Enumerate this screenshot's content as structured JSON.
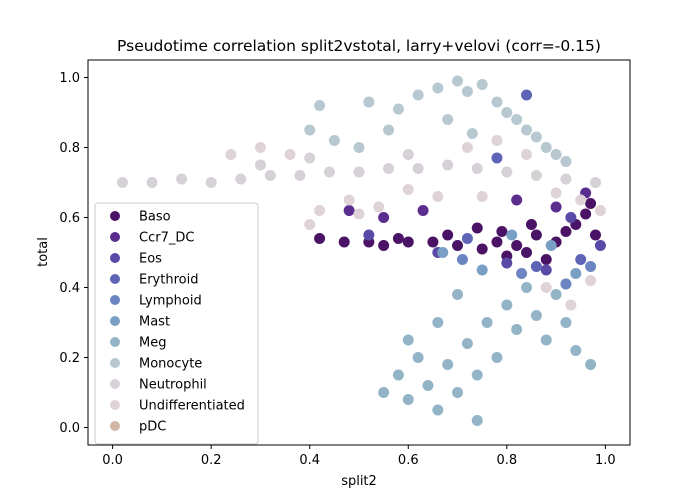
{
  "chart_data": {
    "type": "scatter",
    "title": "Pseudotime correlation split2vstotal, larry+velovi (corr=-0.15)",
    "xlabel": "split2",
    "ylabel": "total",
    "xlim": [
      -0.05,
      1.05
    ],
    "ylim": [
      -0.05,
      1.05
    ],
    "xticks": [
      "0.0",
      "0.2",
      "0.4",
      "0.6",
      "0.8",
      "1.0"
    ],
    "yticks": [
      "0.0",
      "0.2",
      "0.4",
      "0.6",
      "0.8",
      "1.0"
    ],
    "grid": false,
    "legend_position": "lower-left",
    "series": [
      {
        "name": "Baso",
        "color": "#4a1366",
        "points": [
          [
            0.42,
            0.54
          ],
          [
            0.47,
            0.53
          ],
          [
            0.52,
            0.53
          ],
          [
            0.55,
            0.52
          ],
          [
            0.6,
            0.53
          ],
          [
            0.65,
            0.53
          ],
          [
            0.7,
            0.52
          ],
          [
            0.75,
            0.51
          ],
          [
            0.78,
            0.53
          ],
          [
            0.8,
            0.49
          ],
          [
            0.82,
            0.52
          ],
          [
            0.84,
            0.5
          ],
          [
            0.86,
            0.55
          ],
          [
            0.88,
            0.48
          ],
          [
            0.9,
            0.53
          ],
          [
            0.92,
            0.56
          ],
          [
            0.94,
            0.58
          ],
          [
            0.96,
            0.61
          ],
          [
            0.97,
            0.64
          ],
          [
            0.74,
            0.57
          ],
          [
            0.58,
            0.54
          ],
          [
            0.68,
            0.55
          ],
          [
            0.98,
            0.55
          ],
          [
            0.85,
            0.58
          ],
          [
            0.79,
            0.56
          ]
        ]
      },
      {
        "name": "Ccr7_DC",
        "color": "#5a2d8f",
        "points": [
          [
            0.48,
            0.62
          ],
          [
            0.55,
            0.6
          ],
          [
            0.63,
            0.62
          ],
          [
            0.82,
            0.65
          ],
          [
            0.9,
            0.63
          ],
          [
            0.96,
            0.67
          ]
        ]
      },
      {
        "name": "Eos",
        "color": "#5a4aa8",
        "points": [
          [
            0.52,
            0.55
          ],
          [
            0.66,
            0.5
          ],
          [
            0.8,
            0.47
          ],
          [
            0.88,
            0.45
          ],
          [
            0.93,
            0.6
          ],
          [
            0.99,
            0.52
          ]
        ]
      },
      {
        "name": "Erythroid",
        "color": "#5d64b5",
        "points": [
          [
            0.84,
            0.95
          ],
          [
            0.78,
            0.77
          ],
          [
            0.86,
            0.46
          ],
          [
            0.95,
            0.48
          ],
          [
            0.72,
            0.54
          ]
        ]
      },
      {
        "name": "Lymphoid",
        "color": "#6a85c2",
        "points": [
          [
            0.71,
            0.48
          ],
          [
            0.83,
            0.44
          ],
          [
            0.92,
            0.41
          ],
          [
            0.97,
            0.46
          ]
        ]
      },
      {
        "name": "Mast",
        "color": "#79a0c4",
        "points": [
          [
            0.67,
            0.5
          ],
          [
            0.75,
            0.45
          ],
          [
            0.81,
            0.55
          ],
          [
            0.89,
            0.52
          ],
          [
            0.94,
            0.44
          ]
        ]
      },
      {
        "name": "Meg",
        "color": "#93b4c7",
        "points": [
          [
            0.55,
            0.1
          ],
          [
            0.58,
            0.15
          ],
          [
            0.6,
            0.08
          ],
          [
            0.62,
            0.2
          ],
          [
            0.64,
            0.12
          ],
          [
            0.66,
            0.05
          ],
          [
            0.68,
            0.18
          ],
          [
            0.7,
            0.1
          ],
          [
            0.72,
            0.24
          ],
          [
            0.74,
            0.15
          ],
          [
            0.76,
            0.3
          ],
          [
            0.78,
            0.2
          ],
          [
            0.8,
            0.35
          ],
          [
            0.82,
            0.28
          ],
          [
            0.84,
            0.4
          ],
          [
            0.86,
            0.32
          ],
          [
            0.88,
            0.25
          ],
          [
            0.9,
            0.38
          ],
          [
            0.92,
            0.3
          ],
          [
            0.94,
            0.22
          ],
          [
            0.66,
            0.3
          ],
          [
            0.7,
            0.38
          ],
          [
            0.74,
            0.02
          ],
          [
            0.6,
            0.25
          ],
          [
            0.97,
            0.18
          ]
        ]
      },
      {
        "name": "Monocyte",
        "color": "#b7c8d0",
        "points": [
          [
            0.42,
            0.92
          ],
          [
            0.52,
            0.93
          ],
          [
            0.58,
            0.91
          ],
          [
            0.62,
            0.95
          ],
          [
            0.66,
            0.97
          ],
          [
            0.7,
            0.99
          ],
          [
            0.72,
            0.96
          ],
          [
            0.75,
            0.98
          ],
          [
            0.78,
            0.93
          ],
          [
            0.8,
            0.9
          ],
          [
            0.82,
            0.88
          ],
          [
            0.84,
            0.85
          ],
          [
            0.86,
            0.83
          ],
          [
            0.88,
            0.8
          ],
          [
            0.9,
            0.78
          ],
          [
            0.92,
            0.76
          ],
          [
            0.68,
            0.88
          ],
          [
            0.73,
            0.84
          ],
          [
            0.56,
            0.85
          ],
          [
            0.4,
            0.85
          ],
          [
            0.45,
            0.82
          ],
          [
            0.5,
            0.8
          ]
        ]
      },
      {
        "name": "Neutrophil",
        "color": "#d5d1d7",
        "points": [
          [
            0.02,
            0.7
          ],
          [
            0.08,
            0.7
          ],
          [
            0.14,
            0.71
          ],
          [
            0.2,
            0.7
          ],
          [
            0.26,
            0.71
          ],
          [
            0.32,
            0.72
          ],
          [
            0.38,
            0.72
          ],
          [
            0.44,
            0.73
          ],
          [
            0.5,
            0.73
          ],
          [
            0.56,
            0.74
          ],
          [
            0.62,
            0.74
          ],
          [
            0.68,
            0.75
          ],
          [
            0.74,
            0.74
          ],
          [
            0.8,
            0.73
          ],
          [
            0.86,
            0.72
          ],
          [
            0.92,
            0.71
          ],
          [
            0.98,
            0.7
          ],
          [
            0.3,
            0.75
          ],
          [
            0.4,
            0.77
          ],
          [
            0.6,
            0.78
          ]
        ]
      },
      {
        "name": "Undifferentiated",
        "color": "#dfd3d8",
        "points": [
          [
            0.24,
            0.78
          ],
          [
            0.3,
            0.8
          ],
          [
            0.36,
            0.78
          ],
          [
            0.42,
            0.62
          ],
          [
            0.48,
            0.65
          ],
          [
            0.54,
            0.63
          ],
          [
            0.6,
            0.68
          ],
          [
            0.66,
            0.66
          ],
          [
            0.72,
            0.8
          ],
          [
            0.78,
            0.82
          ],
          [
            0.84,
            0.78
          ],
          [
            0.9,
            0.67
          ],
          [
            0.95,
            0.65
          ],
          [
            0.99,
            0.62
          ],
          [
            0.88,
            0.4
          ],
          [
            0.93,
            0.35
          ],
          [
            0.97,
            0.42
          ],
          [
            0.4,
            0.58
          ],
          [
            0.5,
            0.61
          ],
          [
            0.75,
            0.66
          ]
        ]
      },
      {
        "name": "pDC",
        "color": "#d2b6a7",
        "points": []
      }
    ]
  }
}
